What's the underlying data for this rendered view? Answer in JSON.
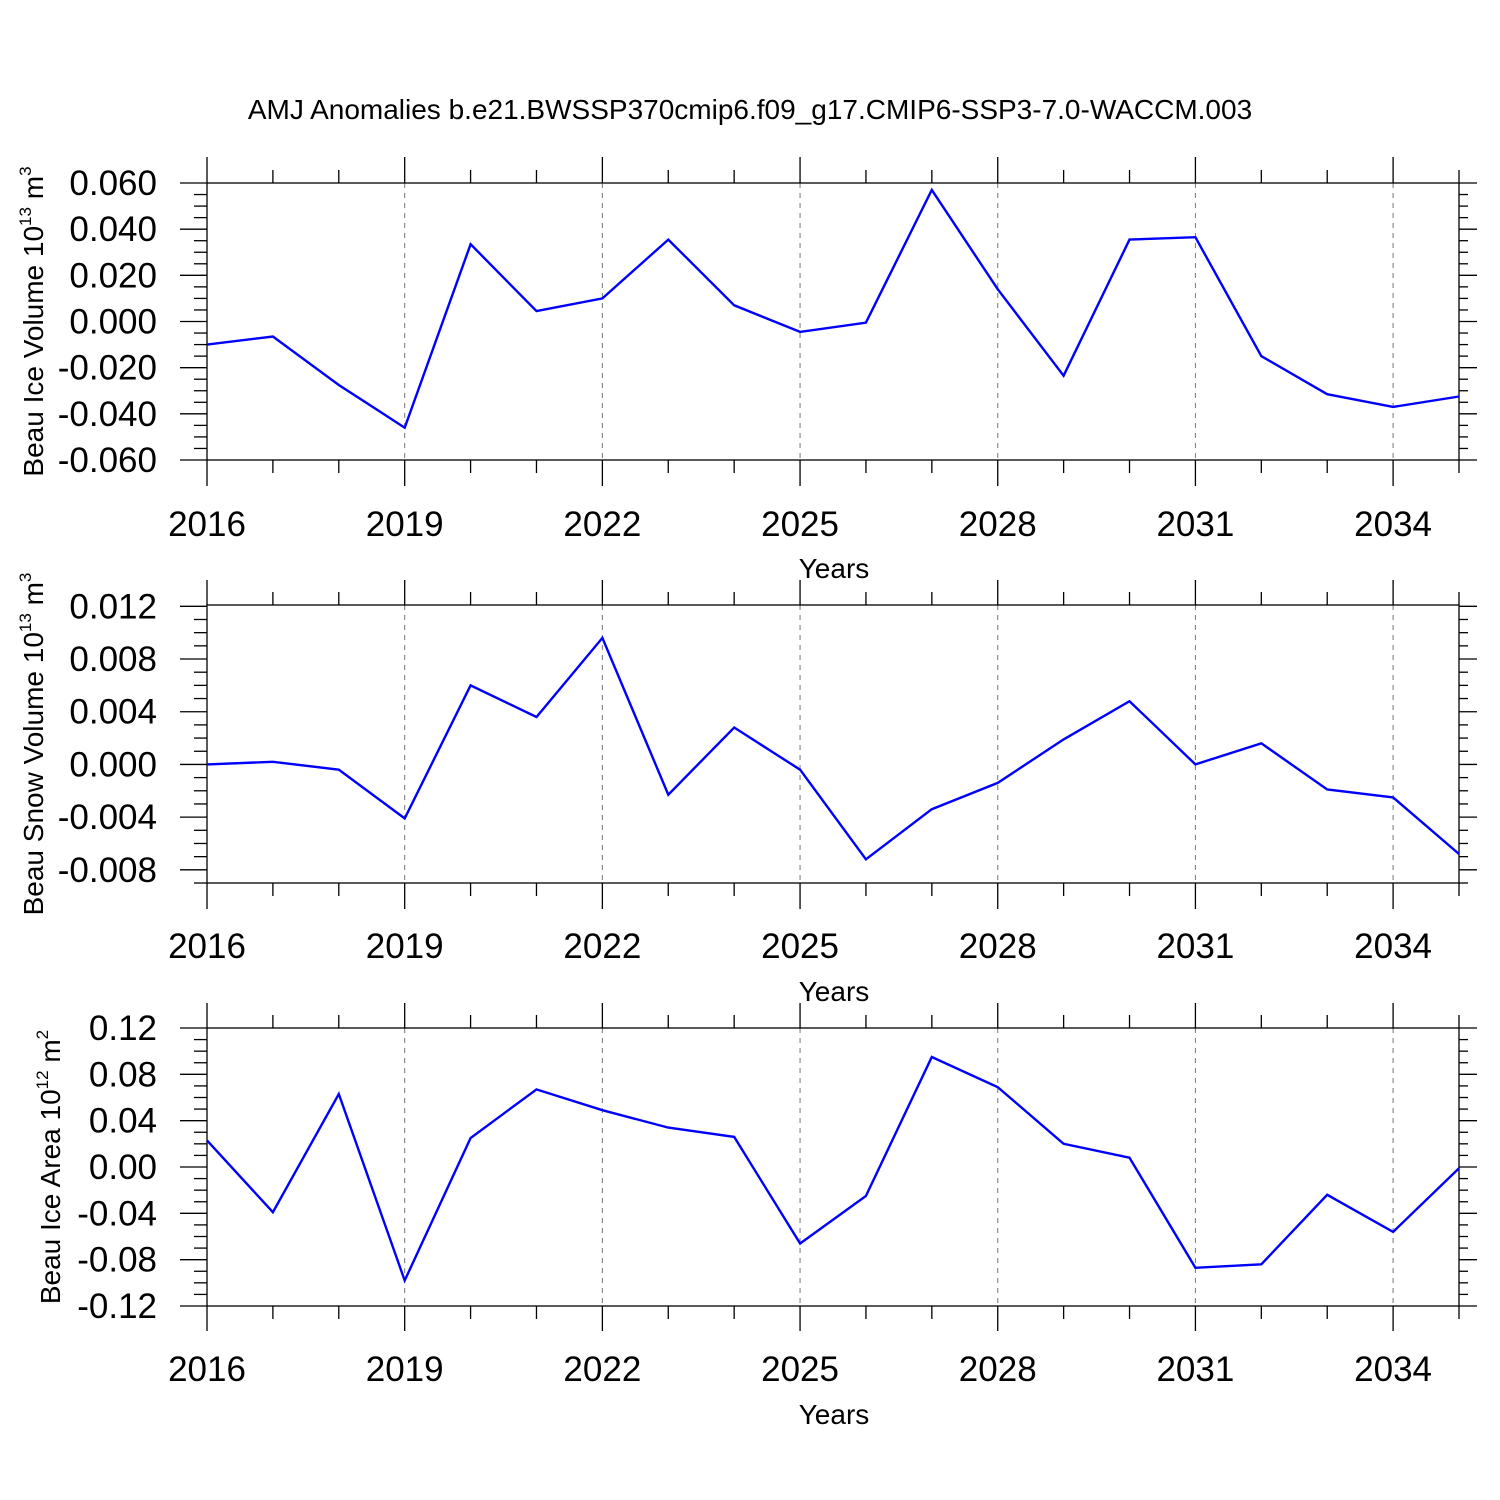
{
  "chart_data": {
    "title": "AMJ Anomalies b.e21.BWSSP370cmip6.f09_g17.CMIP6-SSP3-7.0-WACCM.003",
    "colors": {
      "series": "#0000ff",
      "grid": "#777777",
      "axes": "#000000"
    },
    "panels": [
      {
        "type": "line",
        "ylabel": "Beau Ice Volume 10",
        "ylabel_exp": "13",
        "ylabel_unit": " m",
        "ylabel_unit_exp": "3",
        "xlabel": "Years",
        "xlim": [
          2016,
          2035
        ],
        "ylim": [
          -0.06,
          0.06
        ],
        "yticks": [
          -0.06,
          -0.04,
          -0.02,
          0.0,
          0.02,
          0.04,
          0.06
        ],
        "ytick_labels": [
          "-0.060",
          "-0.040",
          "-0.020",
          "0.000",
          "0.020",
          "0.040",
          "0.060"
        ],
        "xticks": [
          2016,
          2019,
          2022,
          2025,
          2028,
          2031,
          2034
        ],
        "xtick_labels": [
          "2016",
          "2019",
          "2022",
          "2025",
          "2028",
          "2031",
          "2034"
        ],
        "x": [
          2016,
          2017,
          2018,
          2019,
          2020,
          2021,
          2022,
          2023,
          2024,
          2025,
          2026,
          2027,
          2028,
          2029,
          2030,
          2031,
          2032,
          2033,
          2034,
          2035
        ],
        "values": [
          -0.01,
          -0.0065,
          -0.0275,
          -0.046,
          0.0335,
          0.0045,
          0.01,
          0.0355,
          0.007,
          -0.0045,
          -0.0005,
          0.057,
          0.014,
          -0.0235,
          0.0355,
          0.0365,
          -0.015,
          -0.0315,
          -0.037,
          -0.0325
        ]
      },
      {
        "type": "line",
        "ylabel": "Beau Snow Volume 10",
        "ylabel_exp": "13",
        "ylabel_unit": " m",
        "ylabel_unit_exp": "3",
        "xlabel": "Years",
        "xlim": [
          2016,
          2035
        ],
        "ylim": [
          -0.009,
          0.0121
        ],
        "yticks": [
          -0.008,
          -0.004,
          0.0,
          0.004,
          0.008,
          0.012
        ],
        "ytick_labels": [
          "-0.008",
          "-0.004",
          "0.000",
          "0.004",
          "0.008",
          "0.012"
        ],
        "xticks": [
          2016,
          2019,
          2022,
          2025,
          2028,
          2031,
          2034
        ],
        "xtick_labels": [
          "2016",
          "2019",
          "2022",
          "2025",
          "2028",
          "2031",
          "2034"
        ],
        "x": [
          2016,
          2017,
          2018,
          2019,
          2020,
          2021,
          2022,
          2023,
          2024,
          2025,
          2026,
          2027,
          2028,
          2029,
          2030,
          2031,
          2032,
          2033,
          2034,
          2035
        ],
        "values": [
          0.0,
          0.0002,
          -0.0004,
          -0.0041,
          0.006,
          0.0036,
          0.0096,
          -0.0023,
          0.0028,
          -0.0004,
          -0.0072,
          -0.0034,
          -0.0014,
          0.0019,
          0.0048,
          0.0,
          0.0016,
          -0.0019,
          -0.0025,
          -0.0068
        ]
      },
      {
        "type": "line",
        "ylabel": "Beau Ice Area 10",
        "ylabel_exp": "12",
        "ylabel_unit": " m",
        "ylabel_unit_exp": "2",
        "xlabel": "Years",
        "xlim": [
          2016,
          2035
        ],
        "ylim": [
          -0.12,
          0.12
        ],
        "yticks": [
          -0.12,
          -0.08,
          -0.04,
          0.0,
          0.04,
          0.08,
          0.12
        ],
        "ytick_labels": [
          "-0.12",
          "-0.08",
          "-0.04",
          "0.00",
          "0.04",
          "0.08",
          "0.12"
        ],
        "xticks": [
          2016,
          2019,
          2022,
          2025,
          2028,
          2031,
          2034
        ],
        "xtick_labels": [
          "2016",
          "2019",
          "2022",
          "2025",
          "2028",
          "2031",
          "2034"
        ],
        "x": [
          2016,
          2017,
          2018,
          2019,
          2020,
          2021,
          2022,
          2023,
          2024,
          2025,
          2026,
          2027,
          2028,
          2029,
          2030,
          2031,
          2032,
          2033,
          2034,
          2035
        ],
        "values": [
          0.023,
          -0.039,
          0.063,
          -0.098,
          0.025,
          0.067,
          0.049,
          0.034,
          0.026,
          -0.066,
          -0.025,
          0.095,
          0.069,
          0.02,
          0.008,
          -0.087,
          -0.084,
          -0.024,
          -0.056,
          -0.001
        ]
      }
    ]
  }
}
